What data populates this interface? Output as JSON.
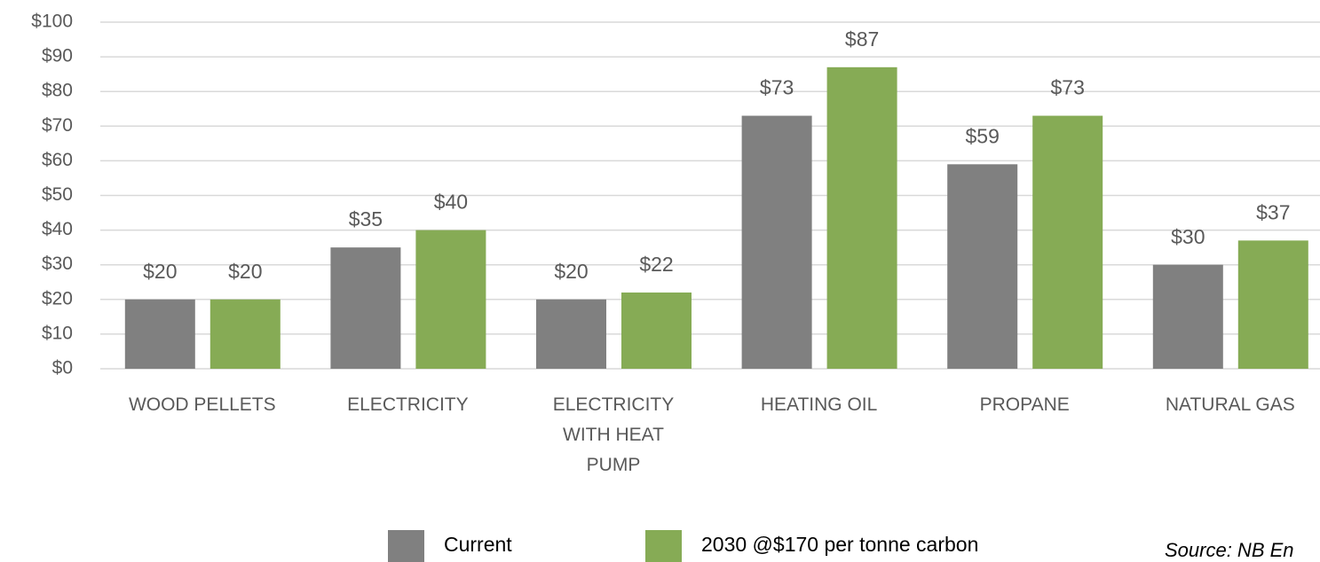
{
  "chart_data": {
    "type": "bar",
    "categories": [
      "WOOD PELLETS",
      "ELECTRICITY",
      "ELECTRICITY\nWITH HEAT\nPUMP",
      "HEATING OIL",
      "PROPANE",
      "NATURAL GAS"
    ],
    "series": [
      {
        "name": "Current",
        "color": "#808080",
        "values": [
          20,
          35,
          20,
          73,
          59,
          30
        ],
        "value_labels": [
          "$20",
          "$35",
          "$20",
          "$73",
          "$59",
          "$30"
        ]
      },
      {
        "name": "2030 @$170 per tonne carbon",
        "color": "#86ab55",
        "values": [
          20,
          40,
          22,
          87,
          73,
          37
        ],
        "value_labels": [
          "$20",
          "$40",
          "$22",
          "$87",
          "$73",
          "$37"
        ]
      }
    ],
    "ylim": [
      0,
      100
    ],
    "yticks": [
      {
        "value": 0,
        "label": "$0"
      },
      {
        "value": 10,
        "label": "$10"
      },
      {
        "value": 20,
        "label": "$20"
      },
      {
        "value": 30,
        "label": "$30"
      },
      {
        "value": 40,
        "label": "$40"
      },
      {
        "value": 50,
        "label": "$50"
      },
      {
        "value": 60,
        "label": "$60"
      },
      {
        "value": 70,
        "label": "$70"
      },
      {
        "value": 80,
        "label": "$80"
      },
      {
        "value": 90,
        "label": "$90"
      },
      {
        "value": 100,
        "label": "$100"
      }
    ],
    "grid": true,
    "legend": "bottom",
    "source": "Source: NB En"
  }
}
